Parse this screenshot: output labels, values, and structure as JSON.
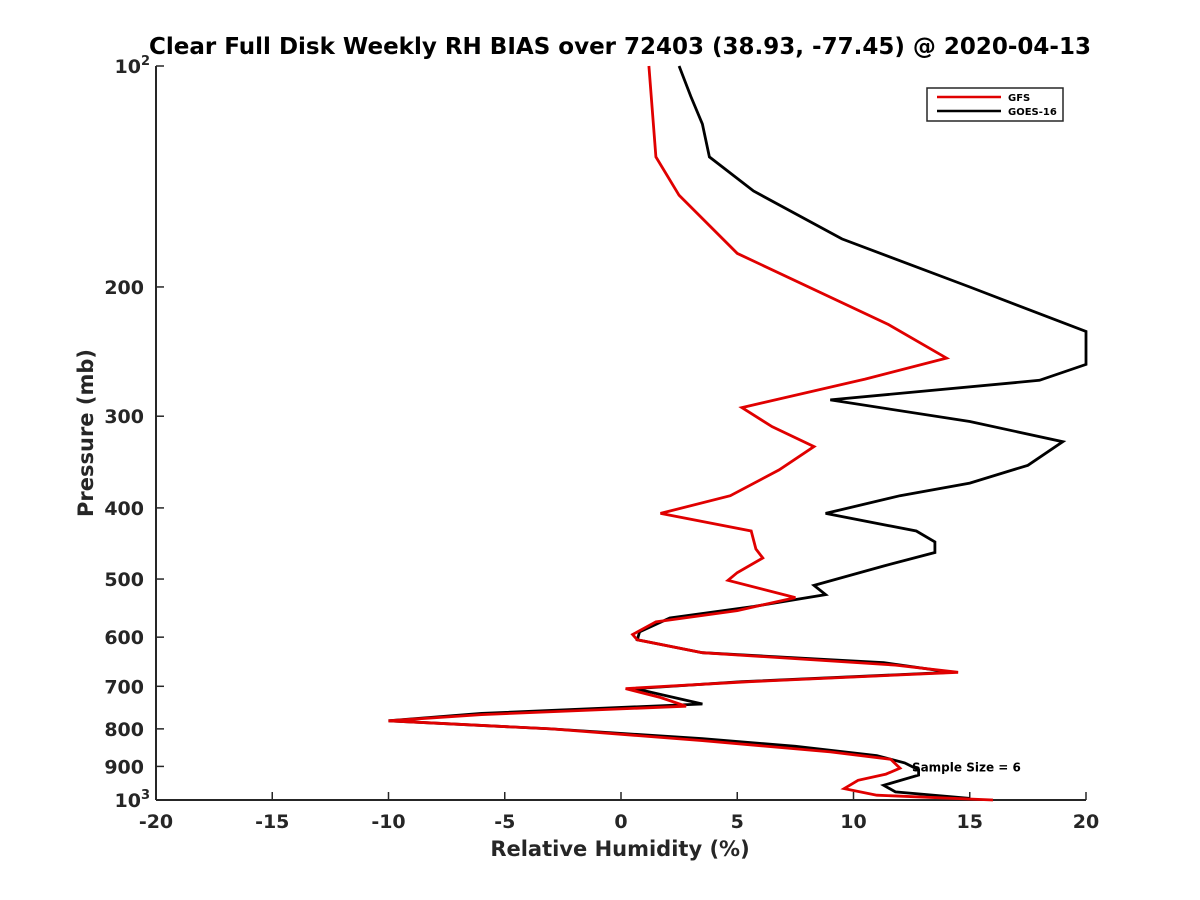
{
  "chart_data": {
    "type": "line",
    "title": "Clear Full Disk Weekly RH BIAS over 72403 (38.93, -77.45) @ 2020-04-13",
    "xlabel": "Relative Humidity (%)",
    "ylabel": "Pressure (mb)",
    "xlim": [
      -20,
      20
    ],
    "ylim": [
      100,
      1000
    ],
    "y_scale": "log",
    "y_reversed": true,
    "x_ticks": [
      "-20",
      "-15",
      "-10",
      "-5",
      "0",
      "5",
      "10",
      "15",
      "20"
    ],
    "y_ticks": [
      {
        "value": 100,
        "label": "10",
        "sup": "2"
      },
      {
        "value": 200,
        "label": "200"
      },
      {
        "value": 300,
        "label": "300"
      },
      {
        "value": 400,
        "label": "400"
      },
      {
        "value": 500,
        "label": "500"
      },
      {
        "value": 600,
        "label": "600"
      },
      {
        "value": 700,
        "label": "700"
      },
      {
        "value": 800,
        "label": "800"
      },
      {
        "value": 900,
        "label": "900"
      },
      {
        "value": 1000,
        "label": "10",
        "sup": "3"
      }
    ],
    "legend": {
      "placement": "top-right",
      "entries": [
        {
          "name": "GFS",
          "color": "#e00000"
        },
        {
          "name": "GOES-16",
          "color": "#000000"
        }
      ]
    },
    "annotation": {
      "text": "Sample Size = 6",
      "x": 12.6,
      "y": 900
    },
    "grid": false,
    "series": [
      {
        "name": "GFS",
        "color": "#e00000",
        "points": [
          [
            1.2,
            100
          ],
          [
            1.5,
            133
          ],
          [
            2.5,
            150
          ],
          [
            5.0,
            180
          ],
          [
            11.5,
            225
          ],
          [
            14.0,
            250
          ],
          [
            10.5,
            267
          ],
          [
            5.2,
            292
          ],
          [
            6.5,
            310
          ],
          [
            8.3,
            330
          ],
          [
            6.8,
            355
          ],
          [
            4.7,
            385
          ],
          [
            1.7,
            407
          ],
          [
            5.6,
            430
          ],
          [
            5.8,
            455
          ],
          [
            6.1,
            468
          ],
          [
            5.0,
            490
          ],
          [
            4.6,
            502
          ],
          [
            7.5,
            530
          ],
          [
            5.0,
            552
          ],
          [
            1.5,
            572
          ],
          [
            0.5,
            595
          ],
          [
            0.7,
            605
          ],
          [
            3.5,
            630
          ],
          [
            11.8,
            655
          ],
          [
            14.5,
            670
          ],
          [
            5.5,
            690
          ],
          [
            0.2,
            705
          ],
          [
            1.7,
            725
          ],
          [
            2.8,
            745
          ],
          [
            -6.0,
            765
          ],
          [
            -10.0,
            780
          ],
          [
            -3.0,
            800
          ],
          [
            3.5,
            830
          ],
          [
            9.0,
            860
          ],
          [
            11.6,
            880
          ],
          [
            12.0,
            905
          ],
          [
            11.4,
            922
          ],
          [
            10.2,
            940
          ],
          [
            9.6,
            965
          ],
          [
            11.0,
            985
          ],
          [
            16.0,
            1000
          ]
        ]
      },
      {
        "name": "GOES-16",
        "color": "#000000",
        "points": [
          [
            2.5,
            100
          ],
          [
            3.0,
            110
          ],
          [
            3.5,
            120
          ],
          [
            3.8,
            133
          ],
          [
            5.7,
            148
          ],
          [
            9.5,
            172
          ],
          [
            15.0,
            200
          ],
          [
            20.0,
            230
          ],
          [
            20.0,
            255
          ],
          [
            18.0,
            268
          ],
          [
            9.0,
            285
          ],
          [
            15.0,
            305
          ],
          [
            19.0,
            325
          ],
          [
            17.5,
            350
          ],
          [
            15.0,
            370
          ],
          [
            12.0,
            385
          ],
          [
            8.8,
            407
          ],
          [
            12.7,
            430
          ],
          [
            13.5,
            445
          ],
          [
            13.5,
            460
          ],
          [
            11.3,
            480
          ],
          [
            8.3,
            510
          ],
          [
            8.8,
            525
          ],
          [
            5.7,
            545
          ],
          [
            2.1,
            565
          ],
          [
            0.8,
            590
          ],
          [
            0.7,
            605
          ],
          [
            3.5,
            630
          ],
          [
            11.3,
            650
          ],
          [
            14.2,
            670
          ],
          [
            5.2,
            690
          ],
          [
            0.6,
            705
          ],
          [
            3.5,
            740
          ],
          [
            -6.0,
            762
          ],
          [
            -10.0,
            780
          ],
          [
            -3.0,
            800
          ],
          [
            3.5,
            825
          ],
          [
            7.5,
            845
          ],
          [
            11.0,
            870
          ],
          [
            12.2,
            890
          ],
          [
            12.8,
            910
          ],
          [
            12.8,
            925
          ],
          [
            11.3,
            955
          ],
          [
            11.8,
            975
          ],
          [
            15.0,
            995
          ]
        ]
      }
    ]
  }
}
